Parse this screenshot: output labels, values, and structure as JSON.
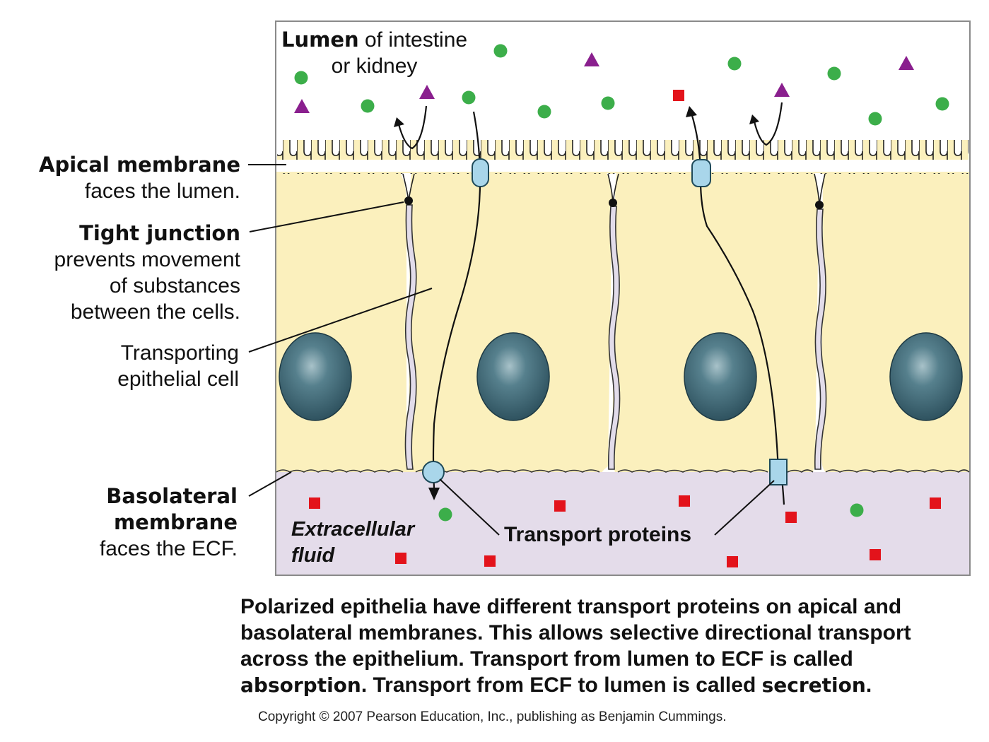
{
  "lumen": {
    "title_bold": "Lumen",
    "title_rest": " of intestine",
    "title_line2": "or kidney"
  },
  "labels": {
    "apical_bold": "Apical membrane",
    "apical_rest": "faces the lumen.",
    "tight_bold": "Tight junction",
    "tight_line2": "prevents movement",
    "tight_line3": "of substances",
    "tight_line4": "between the cells.",
    "transporting_line1": "Transporting",
    "transporting_line2": "epithelial cell",
    "basolateral_line1": "Basolateral",
    "basolateral_line2": "membrane",
    "basolateral_line3": "faces the ECF."
  },
  "ecf": {
    "line1": "Extracellular",
    "line2": "fluid"
  },
  "transport_proteins_label": "Transport proteins",
  "caption": {
    "part1": "Polarized epithelia have different transport proteins on apical and basolateral membranes. This allows selective directional transport across the epithelium. Transport from lumen to ECF is called ",
    "absorption": "absorption",
    "part2": ". Transport from ECF to lumen is called ",
    "secretion": "secretion",
    "part3": "."
  },
  "copyright": "Copyright © 2007 Pearson Education, Inc., publishing as Benjamin Cummings.",
  "colors": {
    "cell": "#fbf0bd",
    "ecf": "#e4dcea",
    "nucleus": "#3d6573",
    "green_molecule": "#3cae4a",
    "purple_molecule": "#8a1f8e",
    "red_molecule": "#e3131b",
    "transport_protein": "#a9d6ea",
    "gap": "#e2dcea"
  }
}
